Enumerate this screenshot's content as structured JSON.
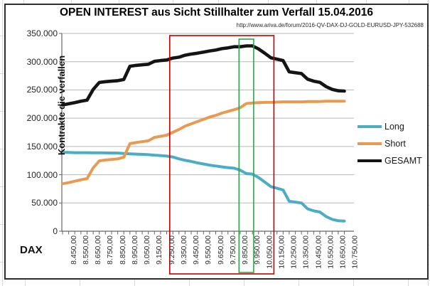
{
  "header": {
    "title": "OPEN INTEREST aus Sicht Stillhalter zum Verfall 15.04.2016",
    "source_url": "http://www.ariva.de/forum/2016-QV-DAX-DJ-GOLD-EURUSD-JPY-532688"
  },
  "axes": {
    "x_title": "DAX",
    "y_title": "Kontrakte die verfallen"
  },
  "chart_data": {
    "type": "line",
    "title": "OPEN INTEREST aus Sicht Stillhalter zum Verfall 15.04.2016",
    "xlabel": "DAX",
    "ylabel": "Kontrakte die verfallen",
    "ylim": [
      0,
      350000
    ],
    "grid": "horizontal",
    "legend_position": "right",
    "x": [
      8450,
      8500,
      8550,
      8600,
      8650,
      8700,
      8750,
      8800,
      8850,
      8900,
      8950,
      9000,
      9050,
      9100,
      9150,
      9200,
      9250,
      9300,
      9350,
      9400,
      9450,
      9500,
      9550,
      9600,
      9650,
      9700,
      9750,
      9800,
      9850,
      9900,
      9950,
      10000,
      10050,
      10100,
      10150,
      10200,
      10250,
      10300,
      10350,
      10400,
      10450,
      10500,
      10550,
      10600,
      10650,
      10700,
      10750
    ],
    "x_tick_labels": [
      "8.450,00",
      "8.550,00",
      "8.650,00",
      "8.750,00",
      "8.850,00",
      "8.950,00",
      "9.050,00",
      "9.150,00",
      "9.250,00",
      "9.350,00",
      "9.450,00",
      "9.550,00",
      "9.650,00",
      "9.750,00",
      "9.850,00",
      "9.950,00",
      "10.050,00",
      "10.150,00",
      "10.250,00",
      "10.350,00",
      "10.450,00",
      "10.550,00",
      "10.650,00",
      "10.750,00"
    ],
    "y_tick_labels": [
      "350.000",
      "300.000",
      "250.000",
      "200.000",
      "150.000",
      "100.000",
      "50.000",
      "0"
    ],
    "series": [
      {
        "name": "Long",
        "color": "#4BACC6",
        "values": [
          139500,
          139500,
          139000,
          139000,
          139000,
          138800,
          138800,
          138600,
          138500,
          138400,
          137500,
          137000,
          136500,
          136000,
          135500,
          134600,
          134000,
          133000,
          131500,
          128000,
          125500,
          123500,
          121000,
          119000,
          117000,
          115500,
          114000,
          112500,
          111500,
          108000,
          102000,
          101000,
          95000,
          87000,
          79000,
          76000,
          73000,
          53000,
          51500,
          50000,
          39500,
          36000,
          34000,
          26000,
          21000,
          18500,
          18000
        ]
      },
      {
        "name": "Short",
        "color": "#E89B50",
        "values": [
          84000,
          86000,
          88500,
          91000,
          93000,
          112000,
          124500,
          126000,
          127000,
          128000,
          131000,
          155000,
          157000,
          158500,
          160000,
          166000,
          168000,
          170000,
          175000,
          180000,
          186000,
          190000,
          194000,
          198000,
          202000,
          205000,
          209000,
          212000,
          215000,
          218500,
          226000,
          227000,
          227500,
          228000,
          228000,
          228500,
          229000,
          229000,
          229000,
          229000,
          229500,
          229500,
          229500,
          230000,
          230000,
          230000,
          230000
        ]
      },
      {
        "name": "GESAMT",
        "color": "#141414",
        "values": [
          223500,
          225500,
          227500,
          230000,
          232000,
          250800,
          263300,
          264600,
          265500,
          266400,
          268500,
          292000,
          293500,
          294500,
          295500,
          300600,
          302000,
          303000,
          306500,
          308000,
          311500,
          313500,
          315000,
          317000,
          319000,
          320500,
          323000,
          324500,
          326500,
          326500,
          328000,
          328000,
          322500,
          315000,
          307000,
          304500,
          302000,
          282000,
          280500,
          279000,
          269000,
          265500,
          263500,
          256000,
          251000,
          248500,
          248000
        ]
      }
    ],
    "annotations": [
      {
        "shape": "rect",
        "color": "#C00000",
        "x_from": 9325,
        "x_to": 10175
      },
      {
        "shape": "rect",
        "color": "#2FA44F",
        "x_from": 9890,
        "x_to": 10010
      }
    ]
  }
}
